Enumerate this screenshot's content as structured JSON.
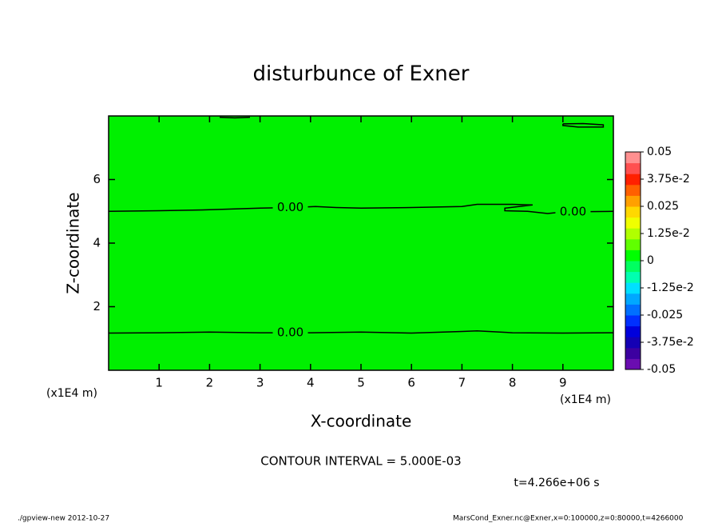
{
  "chart_data": {
    "type": "contour",
    "title": "disturbunce of Exner",
    "x_label": "X-coordinate",
    "y_label": "Z-coordinate",
    "x_unit": "(x1E4 m)",
    "xlim": [
      0,
      10
    ],
    "ylim": [
      0,
      8
    ],
    "xticks": [
      1,
      2,
      3,
      4,
      5,
      6,
      7,
      8,
      9
    ],
    "yticks": [
      2,
      4,
      6
    ],
    "fill": "#00f000",
    "line_color": "#000000",
    "contours": [
      {
        "label": "0.00",
        "x": [
          0,
          1,
          2,
          3,
          3.6,
          4.1,
          4.5,
          5,
          6,
          7,
          7.3,
          8,
          8.4,
          7.85,
          7.85,
          8.3,
          8.7,
          9,
          10
        ],
        "y": [
          5.0,
          5.02,
          5.05,
          5.1,
          5.12,
          5.15,
          5.12,
          5.1,
          5.12,
          5.15,
          5.22,
          5.22,
          5.2,
          5.1,
          5.02,
          5.0,
          4.93,
          4.98,
          5.0
        ]
      },
      {
        "label": "0.00",
        "x": [
          0,
          1,
          2,
          3,
          4,
          5,
          6,
          7,
          7.3,
          8,
          9,
          10
        ],
        "y": [
          1.17,
          1.18,
          1.2,
          1.18,
          1.18,
          1.2,
          1.17,
          1.22,
          1.24,
          1.18,
          1.17,
          1.18
        ]
      },
      {
        "x": [
          2.2,
          2.5,
          2.8
        ],
        "y": [
          7.96,
          7.94,
          7.96
        ]
      },
      {
        "x": [
          9,
          9.4,
          9.8,
          9.8,
          9.3,
          9,
          9
        ],
        "y": [
          7.75,
          7.76,
          7.72,
          7.65,
          7.65,
          7.7,
          7.75
        ]
      }
    ],
    "colorbar": {
      "clim": [
        -0.05,
        0.05
      ],
      "colors": [
        "#6a0db0",
        "#3c00a0",
        "#1400b4",
        "#0000dc",
        "#0030ff",
        "#0070ff",
        "#00a8ff",
        "#00e0ff",
        "#00ffb0",
        "#00ff60",
        "#00ff00",
        "#60ff00",
        "#b0ff00",
        "#f0ff00",
        "#ffd800",
        "#ffa000",
        "#ff6000",
        "#ff2000",
        "#ff5050",
        "#ff9090"
      ],
      "ticks": [
        0.05,
        {
          "value": 0.0375,
          "label": "3.75e-2"
        },
        0.025,
        {
          "value": 0.0125,
          "label": "1.25e-2"
        },
        0,
        {
          "value": -0.0125,
          "label": "-1.25e-2"
        },
        -0.025,
        {
          "value": -0.0375,
          "label": "-3.75e-2"
        },
        -0.05
      ]
    },
    "contour_interval": "CONTOUR INTERVAL = 5.000E-03",
    "time_label": "t=4.266e+06 s",
    "footer_left": "./gpview-new  2012-10-27",
    "footer_right": "MarsCond_Exner.nc@Exner,x=0:100000,z=0:80000,t=4266000"
  }
}
